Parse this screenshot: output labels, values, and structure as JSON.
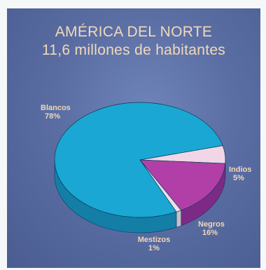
{
  "colors": {
    "background": "#5a6ea4",
    "title_text": "#f3d9b8",
    "label_text": "#f1d8b6",
    "blancos": "#1aa7d3",
    "indios": "#f0d6e6",
    "negros": "#b23fa8",
    "mestizos": "#e9e0ea"
  },
  "chart_data": {
    "type": "pie",
    "title": "AMÉRICA DEL NORTE",
    "subtitle": "11,6 millones de habitantes",
    "slices": [
      {
        "label": "Blancos",
        "value_label": "78%",
        "value": 78
      },
      {
        "label": "Indios",
        "value_label": "5%",
        "value": 5
      },
      {
        "label": "Negros",
        "value_label": "16%",
        "value": 16
      },
      {
        "label": "Mestizos",
        "value_label": "1%",
        "value": 1
      }
    ]
  }
}
